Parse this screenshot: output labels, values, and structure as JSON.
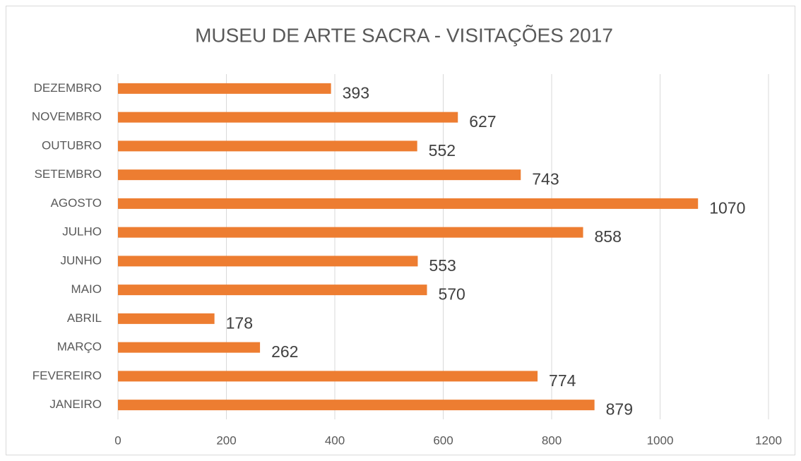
{
  "chart_data": {
    "type": "bar",
    "orientation": "horizontal",
    "title": "MUSEU DE ARTE SACRA - VISITAÇÕES 2017",
    "categories": [
      "JANEIRO",
      "FEVEREIRO",
      "MARÇO",
      "ABRIL",
      "MAIO",
      "JUNHO",
      "JULHO",
      "AGOSTO",
      "SETEMBRO",
      "OUTUBRO",
      "NOVEMBRO",
      "DEZEMBRO"
    ],
    "values": [
      879,
      774,
      262,
      178,
      570,
      553,
      858,
      1070,
      743,
      552,
      627,
      393
    ],
    "color": "#ed7d31",
    "xlim": [
      0,
      1200
    ],
    "xticks": [
      0,
      200,
      400,
      600,
      800,
      1000,
      1200
    ],
    "grid": true
  }
}
